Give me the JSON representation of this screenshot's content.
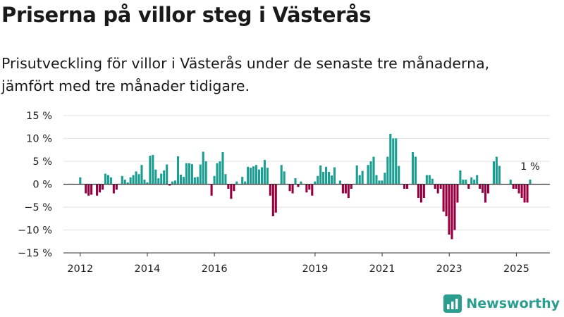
{
  "title": "Priserna på villor steg i Västerås",
  "subtitle": "Prisutveckling för villor i Västerås under de senaste tre månaderna, jämfört med tre månader tidigare.",
  "brand": "Newsworthy",
  "colors": {
    "positive": "#1b9e92",
    "negative": "#960040",
    "zero_line": "#333333",
    "grid": "#e2e2e2"
  },
  "chart_data": {
    "type": "bar",
    "y_ticks": [
      "15 %",
      "10 %",
      "5 %",
      "0 %",
      "−5 %",
      "−10 %",
      "−15 %"
    ],
    "y_tick_values": [
      15,
      10,
      5,
      0,
      -5,
      -10,
      -15
    ],
    "ylim": [
      -15,
      15
    ],
    "x_ticks": [
      {
        "label": "2012",
        "x": 2012.0
      },
      {
        "label": "2014",
        "x": 2014.0
      },
      {
        "label": "2016",
        "x": 2016.0
      },
      {
        "label": "2019",
        "x": 2019.0
      },
      {
        "label": "2021",
        "x": 2021.0
      },
      {
        "label": "2023",
        "x": 2023.0
      },
      {
        "label": "2025",
        "x": 2025.0
      }
    ],
    "x_start": 2012.0,
    "x_step": 0.0833,
    "xlim": [
      2011.5,
      2026.0
    ],
    "grid": true,
    "last_value_label": "1 %",
    "values": [
      1.5,
      0,
      -2,
      -2.5,
      -2.3,
      0,
      -2.5,
      -1.8,
      -1.2,
      2.3,
      2,
      1.5,
      -2,
      -1.2,
      0,
      1.8,
      1,
      0.4,
      1.5,
      2,
      2.8,
      2.2,
      4.2,
      1,
      0.4,
      6.2,
      6.4,
      3.2,
      1.3,
      2.3,
      3,
      4.3,
      -0.3,
      0.6,
      0.8,
      6.1,
      2.1,
      1.6,
      4.6,
      4.6,
      4.4,
      1.5,
      1.6,
      4.3,
      7.1,
      5,
      0,
      -2.5,
      1.8,
      4.6,
      5,
      7,
      2.2,
      -1,
      -3.2,
      -1.5,
      0.6,
      0,
      1.6,
      0.6,
      3.8,
      3.6,
      3.9,
      4.2,
      3.2,
      3.7,
      5.3,
      3.6,
      -2.5,
      -7,
      -6.2,
      0,
      4.2,
      2.8,
      0,
      -1.5,
      -2,
      1.3,
      -0.6,
      0.6,
      0,
      -1.8,
      -1.2,
      -2.5,
      0.6,
      1.8,
      4.1,
      2.7,
      3.8,
      2.7,
      1.9,
      3.7,
      0,
      0.8,
      -2,
      -2,
      -3,
      -1,
      0,
      4.1,
      2,
      2.9,
      0,
      4.2,
      5,
      6,
      2,
      0.8,
      0.8,
      2.5,
      6,
      11,
      10,
      10,
      4,
      0,
      -1,
      -1,
      0,
      7,
      6,
      -3,
      -4,
      -3,
      2,
      2,
      1.2,
      -1,
      -2,
      -1,
      -6,
      -7,
      -11,
      -12,
      -10,
      -4,
      3,
      1,
      1,
      -1,
      1.5,
      1,
      2,
      -1,
      -1.9,
      -4,
      -2,
      0,
      5,
      6,
      4,
      0,
      0,
      0,
      1,
      -1,
      -1,
      -2,
      -3,
      -4,
      -4,
      1
    ]
  }
}
